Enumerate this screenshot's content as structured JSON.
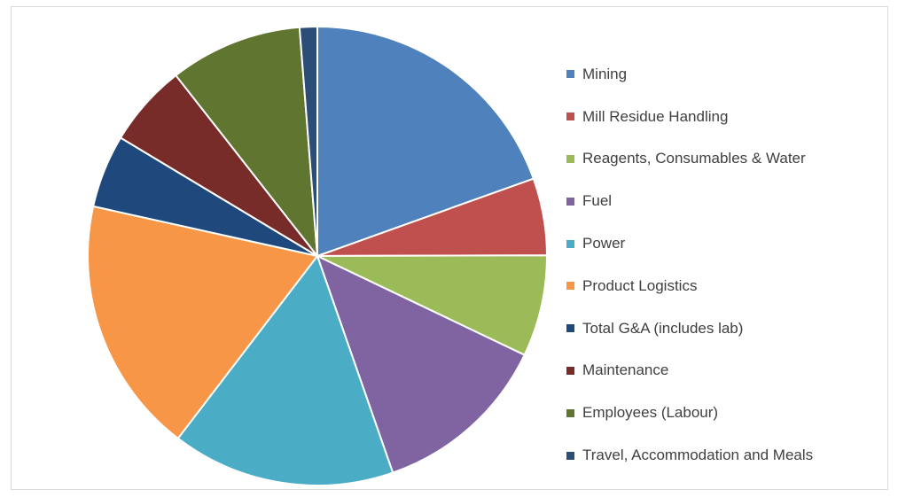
{
  "chart_data": {
    "type": "pie",
    "title": "",
    "legend_position": "right",
    "slices": [
      {
        "label": "Mining",
        "value": 20.5,
        "color": "#4F81BD"
      },
      {
        "label": "Mill Residue Handling",
        "value": 5.7,
        "color": "#C0504D"
      },
      {
        "label": "Reagents, Consumables & Water",
        "value": 7.5,
        "color": "#9BBB59"
      },
      {
        "label": "Fuel",
        "value": 13.2,
        "color": "#8064A2"
      },
      {
        "label": "Power",
        "value": 16.5,
        "color": "#4BACC6"
      },
      {
        "label": "Product Logistics",
        "value": 19.0,
        "color": "#F79646"
      },
      {
        "label": "Total G&A (includes lab)",
        "value": 5.4,
        "color": "#1F497D"
      },
      {
        "label": "Maintenance",
        "value": 6.1,
        "color": "#772C2A"
      },
      {
        "label": "Employees (Labour)",
        "value": 9.8,
        "color": "#5F7530"
      },
      {
        "label": "Travel, Accommodation and Meals",
        "value": 1.3,
        "color": "#2C4D75"
      }
    ]
  }
}
